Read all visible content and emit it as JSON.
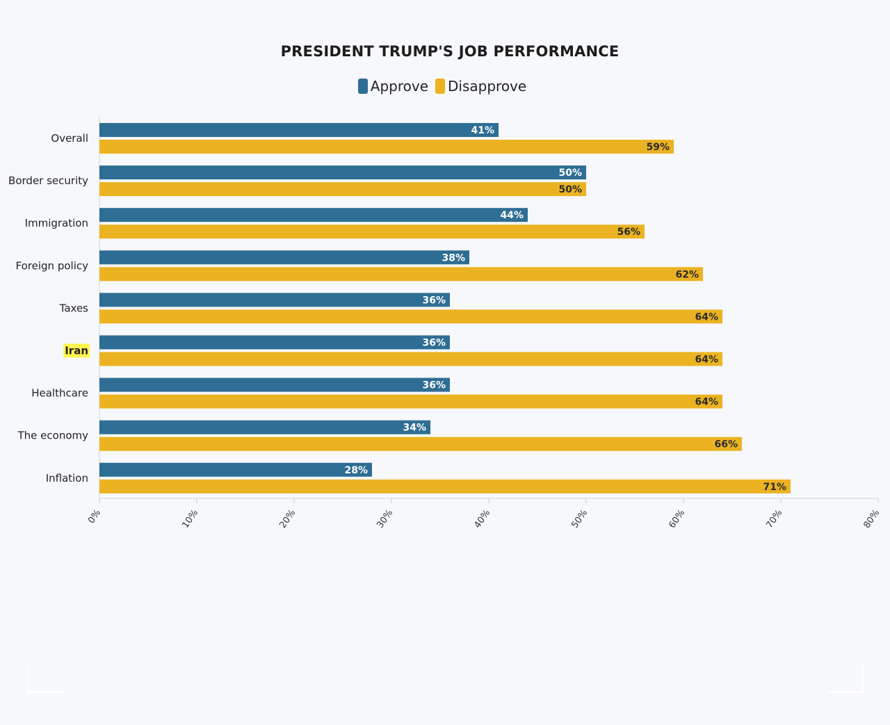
{
  "chart_data": {
    "type": "bar",
    "orientation": "horizontal",
    "title": "PRESIDENT TRUMP'S JOB PERFORMANCE",
    "categories": [
      "Overall",
      "Border security",
      "Immigration",
      "Foreign policy",
      "Taxes",
      "Iran",
      "Healthcare",
      "The economy",
      "Inflation"
    ],
    "highlighted_category": "Iran",
    "series": [
      {
        "name": "Approve",
        "color": "#2f6e94",
        "label_color": "#ffffff",
        "values": [
          41,
          50,
          44,
          38,
          36,
          36,
          36,
          34,
          28
        ]
      },
      {
        "name": "Disapprove",
        "color": "#ebb321",
        "label_color": "#2a2a2a",
        "values": [
          59,
          50,
          56,
          62,
          64,
          64,
          64,
          66,
          71
        ]
      }
    ],
    "xlim": [
      0,
      80
    ],
    "x_ticks": [
      0,
      10,
      20,
      30,
      40,
      50,
      60,
      70,
      80
    ],
    "tick_suffix": "%",
    "legend_position": "top-center",
    "grid": false,
    "highlight_color": "#fff44f"
  }
}
